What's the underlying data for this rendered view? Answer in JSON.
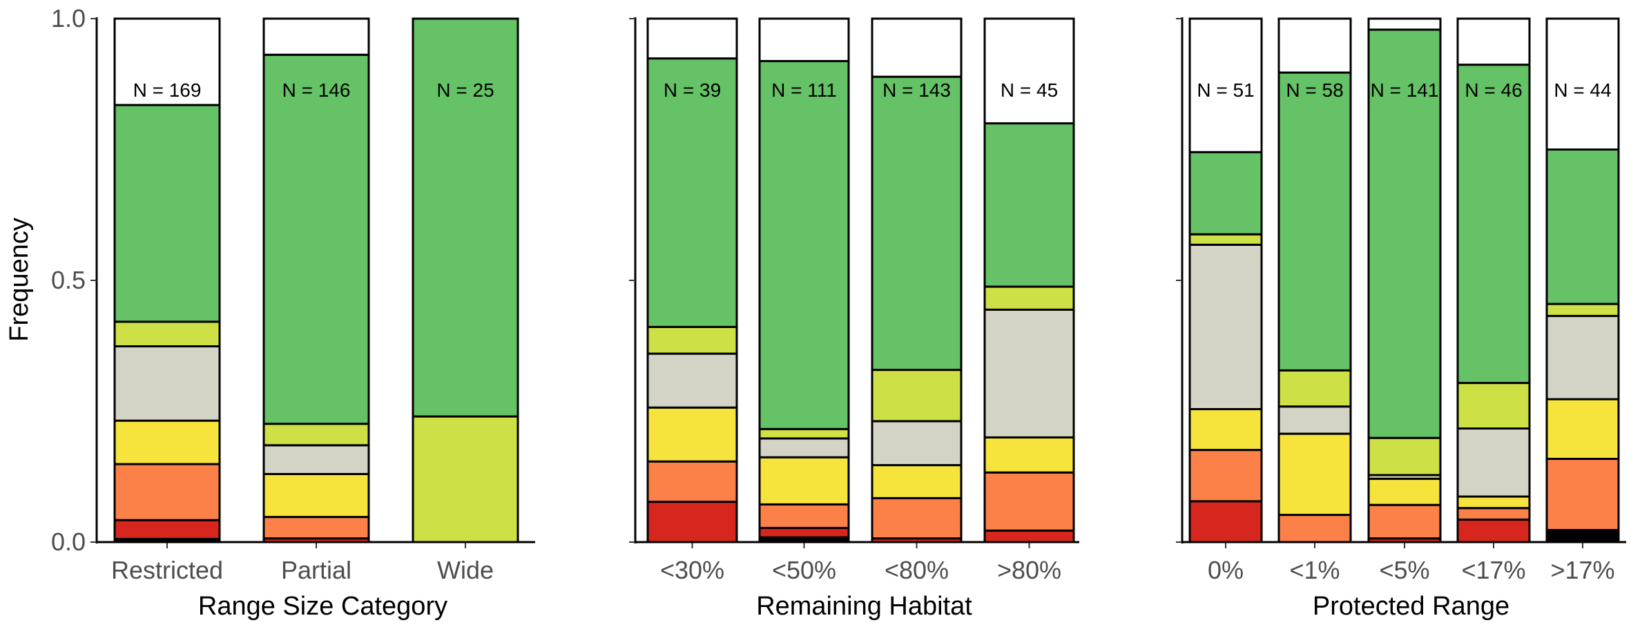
{
  "ylabel": "Frequency",
  "y_ticks": [
    "0.0",
    "0.5",
    "1.0"
  ],
  "chart_data": [
    {
      "type": "bar",
      "stacked": true,
      "xlabel": "Range Size Category",
      "ylabel": "Frequency",
      "ylim": [
        0,
        1
      ],
      "categories": [
        "Restricted",
        "Partial",
        "Wide"
      ],
      "n_labels": [
        "N = 169",
        "N = 146",
        "N = 25"
      ],
      "series": [
        {
          "color": "#000000",
          "values": [
            0.006,
            0.0,
            0.0
          ]
        },
        {
          "color": "#d7261e",
          "values": [
            0.036,
            0.007,
            0.0
          ]
        },
        {
          "color": "#fc8149",
          "values": [
            0.107,
            0.041,
            0.0
          ]
        },
        {
          "color": "#f6e33c",
          "values": [
            0.083,
            0.082,
            0.0
          ]
        },
        {
          "color": "#d3d3c6",
          "values": [
            0.142,
            0.055,
            0.0
          ]
        },
        {
          "color": "#cde045",
          "values": [
            0.047,
            0.041,
            0.24
          ]
        },
        {
          "color": "#66c266",
          "values": [
            0.414,
            0.705,
            0.76
          ]
        },
        {
          "color": "#ffffff",
          "values": [
            0.165,
            0.069,
            0.0
          ]
        }
      ]
    },
    {
      "type": "bar",
      "stacked": true,
      "xlabel": "Remaining Habitat",
      "ylabel": "Frequency",
      "ylim": [
        0,
        1
      ],
      "categories": [
        "<30%",
        "<50%",
        "<80%",
        ">80%"
      ],
      "n_labels": [
        "N = 39",
        "N = 111",
        "N = 143",
        "N = 45"
      ],
      "series": [
        {
          "color": "#000000",
          "values": [
            0.0,
            0.009,
            0.0,
            0.0
          ]
        },
        {
          "color": "#d7261e",
          "values": [
            0.077,
            0.018,
            0.007,
            0.022
          ]
        },
        {
          "color": "#fc8149",
          "values": [
            0.077,
            0.045,
            0.077,
            0.111
          ]
        },
        {
          "color": "#f6e33c",
          "values": [
            0.103,
            0.09,
            0.063,
            0.067
          ]
        },
        {
          "color": "#d3d3c6",
          "values": [
            0.103,
            0.036,
            0.084,
            0.244
          ]
        },
        {
          "color": "#cde045",
          "values": [
            0.051,
            0.018,
            0.098,
            0.044
          ]
        },
        {
          "color": "#66c266",
          "values": [
            0.513,
            0.703,
            0.56,
            0.312
          ]
        },
        {
          "color": "#ffffff",
          "values": [
            0.076,
            0.081,
            0.111,
            0.2
          ]
        }
      ]
    },
    {
      "type": "bar",
      "stacked": true,
      "xlabel": "Protected Range",
      "ylabel": "Frequency",
      "ylim": [
        0,
        1
      ],
      "categories": [
        "0%",
        "<1%",
        "<5%",
        "<17%",
        ">17%"
      ],
      "n_labels": [
        "N = 51",
        "N = 58",
        "N = 141",
        "N = 46",
        "N = 44"
      ],
      "series": [
        {
          "color": "#000000",
          "values": [
            0.0,
            0.0,
            0.0,
            0.0,
            0.023
          ]
        },
        {
          "color": "#d7261e",
          "values": [
            0.078,
            0.0,
            0.007,
            0.043,
            0.0
          ]
        },
        {
          "color": "#fc8149",
          "values": [
            0.098,
            0.052,
            0.064,
            0.022,
            0.136
          ]
        },
        {
          "color": "#f6e33c",
          "values": [
            0.078,
            0.155,
            0.05,
            0.022,
            0.114
          ]
        },
        {
          "color": "#d3d3c6",
          "values": [
            0.314,
            0.052,
            0.007,
            0.13,
            0.159
          ]
        },
        {
          "color": "#cde045",
          "values": [
            0.02,
            0.069,
            0.071,
            0.087,
            0.023
          ]
        },
        {
          "color": "#66c266",
          "values": [
            0.157,
            0.569,
            0.78,
            0.608,
            0.295
          ]
        },
        {
          "color": "#ffffff",
          "values": [
            0.255,
            0.103,
            0.021,
            0.088,
            0.25
          ]
        }
      ]
    }
  ]
}
